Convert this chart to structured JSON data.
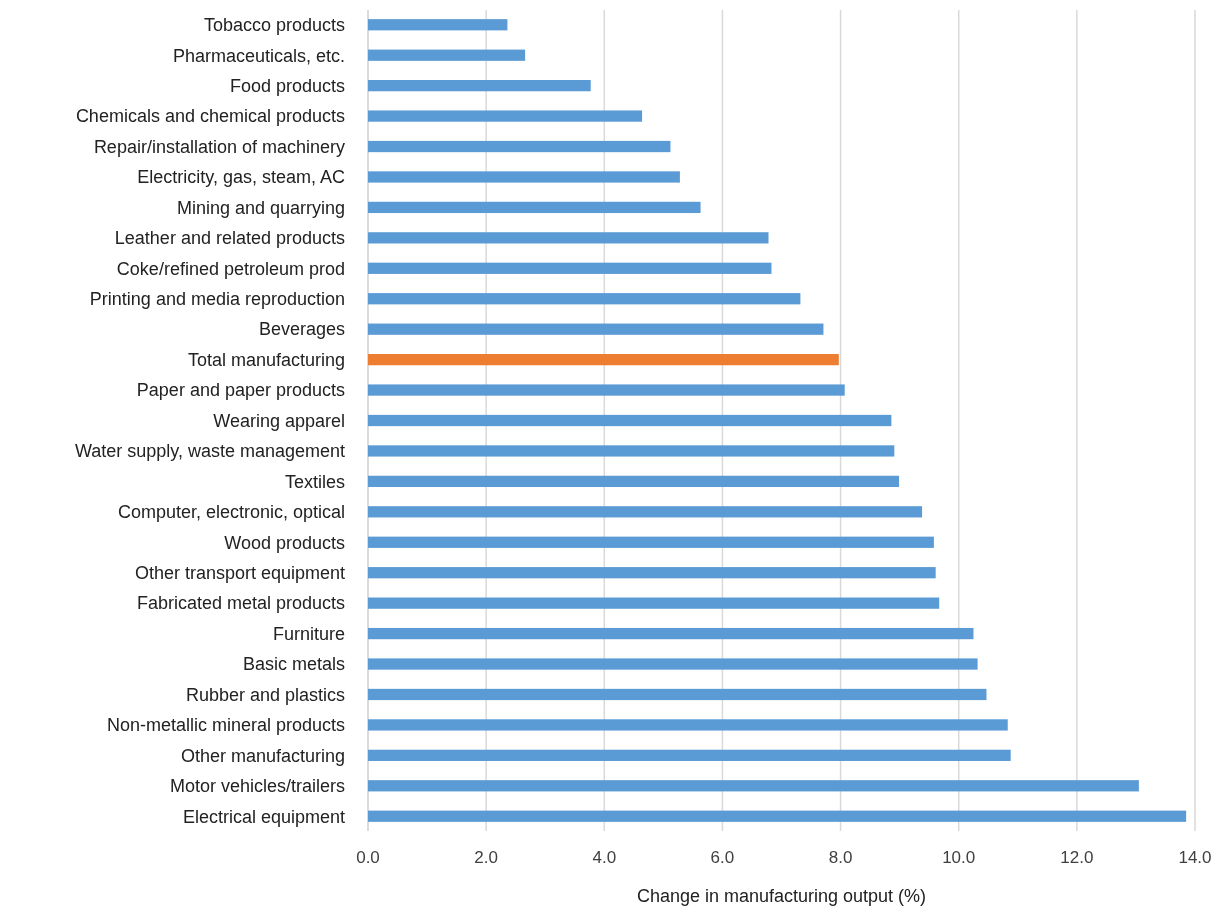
{
  "chart_data": {
    "type": "bar",
    "orientation": "horizontal",
    "xlabel": "Change in manufacturing output (%)",
    "categories": [
      "Tobacco products",
      "Pharmaceuticals, etc.",
      "Food products",
      "Chemicals and chemical products",
      "Repair/installation of machinery",
      "Electricity, gas, steam, AC",
      "Mining and quarrying",
      "Leather and related products",
      "Coke/refined petroleum prod",
      "Printing and media reproduction",
      "Beverages",
      "Total manufacturing",
      "Paper and paper products",
      "Wearing apparel",
      "Water supply, waste management",
      "Textiles",
      "Computer, electronic, optical",
      "Wood products",
      "Other transport equipment",
      "Fabricated metal products",
      "Furniture",
      "Basic metals",
      "Rubber and plastics",
      "Non-metallic mineral products",
      "Other manufacturing",
      "Motor vehicles/trailers",
      "Electrical equipment"
    ],
    "values": [
      2.36,
      2.66,
      3.77,
      4.64,
      5.12,
      5.28,
      5.63,
      6.78,
      6.83,
      7.32,
      7.71,
      7.97,
      8.07,
      8.86,
      8.91,
      8.99,
      9.38,
      9.58,
      9.61,
      9.67,
      10.25,
      10.32,
      10.47,
      10.83,
      10.88,
      13.05,
      13.85
    ],
    "colors": [
      "#5b9bd5",
      "#5b9bd5",
      "#5b9bd5",
      "#5b9bd5",
      "#5b9bd5",
      "#5b9bd5",
      "#5b9bd5",
      "#5b9bd5",
      "#5b9bd5",
      "#5b9bd5",
      "#5b9bd5",
      "#ed7d31",
      "#5b9bd5",
      "#5b9bd5",
      "#5b9bd5",
      "#5b9bd5",
      "#5b9bd5",
      "#5b9bd5",
      "#5b9bd5",
      "#5b9bd5",
      "#5b9bd5",
      "#5b9bd5",
      "#5b9bd5",
      "#5b9bd5",
      "#5b9bd5",
      "#5b9bd5",
      "#5b9bd5"
    ],
    "xlim": [
      0,
      14
    ],
    "xticks": [
      {
        "value": 0,
        "label": "0.0"
      },
      {
        "value": 2,
        "label": "2.0"
      },
      {
        "value": 4,
        "label": "4.0"
      },
      {
        "value": 6,
        "label": "6.0"
      },
      {
        "value": 8,
        "label": "8.0"
      },
      {
        "value": 10,
        "label": "10.0"
      },
      {
        "value": 12,
        "label": "12.0"
      },
      {
        "value": 14,
        "label": "14.0"
      }
    ],
    "grid": "x"
  }
}
